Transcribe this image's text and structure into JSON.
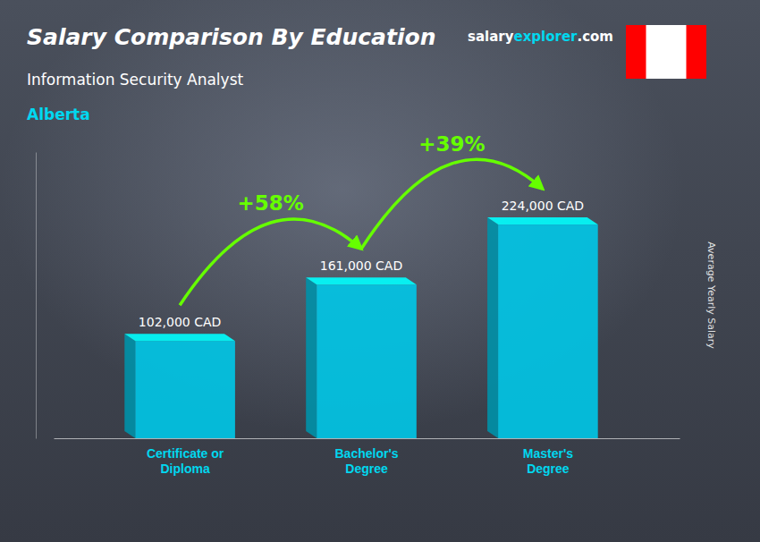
{
  "chart_data": {
    "type": "bar",
    "title": "Salary Comparison By Education",
    "subtitle": "Information Security Analyst",
    "region": "Alberta",
    "ylabel": "Average Yearly Salary",
    "website": [
      "salary",
      "explorer",
      ".com"
    ],
    "categories": [
      "Certificate or\nDiploma",
      "Bachelor's\nDegree",
      "Master's\nDegree"
    ],
    "values": [
      102000,
      161000,
      224000
    ],
    "value_labels": [
      "102,000 CAD",
      "161,000 CAD",
      "224,000 CAD"
    ],
    "annotations": [
      "+58%",
      "+39%"
    ],
    "color": "#00c8e8",
    "ylim": [
      0,
      300000
    ],
    "data_labels": true,
    "tick_labels": "x",
    "grid": false
  }
}
